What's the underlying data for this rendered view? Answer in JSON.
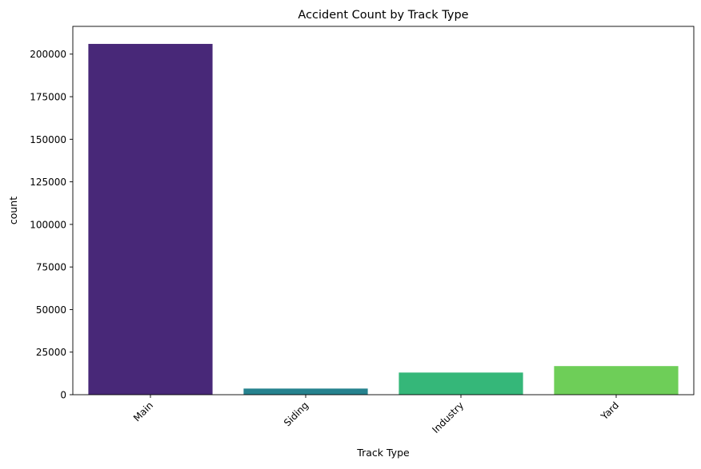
{
  "chart_data": {
    "type": "bar",
    "title": "Accident Count by Track Type",
    "xlabel": "Track Type",
    "ylabel": "count",
    "categories": [
      "Main",
      "Siding",
      "Industry",
      "Yard"
    ],
    "values": [
      206000,
      3600,
      13000,
      16800
    ],
    "colors": [
      "#482878",
      "#26828e",
      "#35b779",
      "#6ece58"
    ],
    "ylim": [
      0,
      216300
    ],
    "yticks": [
      0,
      25000,
      50000,
      75000,
      100000,
      125000,
      150000,
      175000,
      200000
    ],
    "ytick_labels": [
      "0",
      "25000",
      "50000",
      "75000",
      "100000",
      "125000",
      "150000",
      "175000",
      "200000"
    ],
    "xtick_rotation_deg": 45,
    "grid": false,
    "legend": "none"
  }
}
